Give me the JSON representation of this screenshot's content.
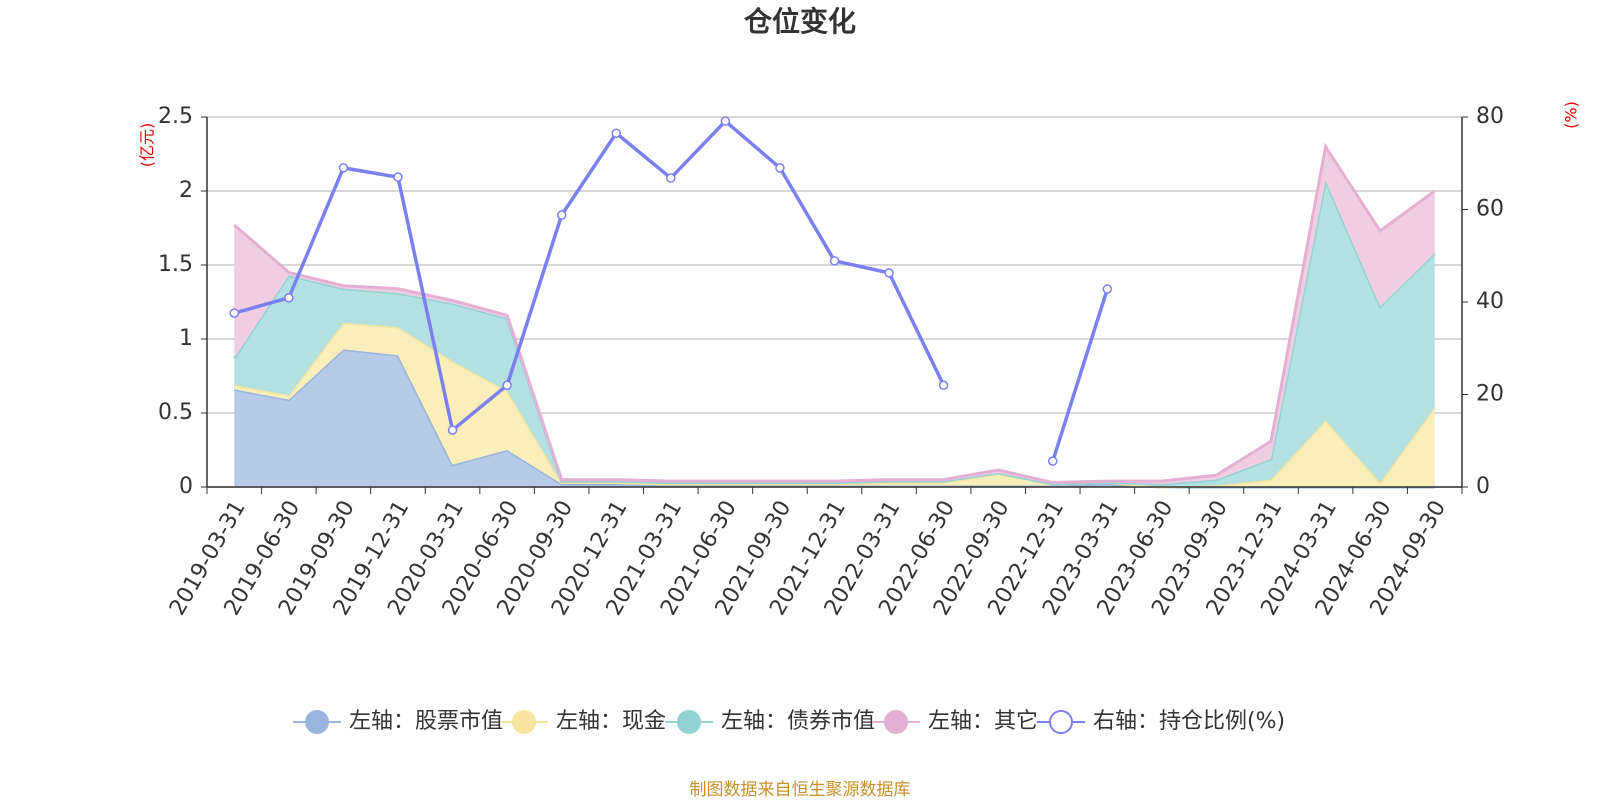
{
  "chart_data": {
    "type": "stacked-area-line",
    "title": "仓位变化",
    "y_label": "(亿元)",
    "y2_label": "(%)",
    "source": "制图数据来自恒生聚源数据库",
    "categories": [
      "2019-03-31",
      "2019-06-30",
      "2019-09-30",
      "2019-12-31",
      "2020-03-31",
      "2020-06-30",
      "2020-09-30",
      "2020-12-31",
      "2021-03-31",
      "2021-06-30",
      "2021-09-30",
      "2021-12-31",
      "2022-03-31",
      "2022-06-30",
      "2022-09-30",
      "2022-12-31",
      "2023-03-31",
      "2023-06-30",
      "2023-09-30",
      "2023-12-31",
      "2024-03-31",
      "2024-06-30",
      "2024-09-30"
    ],
    "ylim": [
      0,
      2.5
    ],
    "yticks": [
      0,
      0.5,
      1,
      1.5,
      2,
      2.5
    ],
    "y2lim": [
      0,
      80
    ],
    "y2ticks": [
      0,
      20,
      40,
      60,
      80
    ],
    "grid": true,
    "series": [
      {
        "name": "左轴：股票市值",
        "color": "#9ab4de",
        "fill": "#b7cbe9",
        "values": [
          0.66,
          0.59,
          0.93,
          0.89,
          0.15,
          0.25,
          0.02,
          0.02,
          0.01,
          0.01,
          0.01,
          0.01,
          0.01,
          0.01,
          0.01,
          0.01,
          0.02,
          0,
          0,
          0,
          0,
          0,
          0
        ]
      },
      {
        "name": "左轴：现金",
        "color": "#f7e59f",
        "fill": "#faeebb",
        "values": [
          0.03,
          0.03,
          0.18,
          0.19,
          0.7,
          0.4,
          0.01,
          0.01,
          0.01,
          0.01,
          0.01,
          0.01,
          0.02,
          0.02,
          0.08,
          0.01,
          0.01,
          0,
          0.01,
          0.05,
          0.45,
          0.03,
          0.54
        ]
      },
      {
        "name": "左轴：债券市值",
        "color": "#92d2d2",
        "fill": "#b3e0e0",
        "values": [
          0.18,
          0.81,
          0.23,
          0.23,
          0.39,
          0.49,
          0.01,
          0.01,
          0.01,
          0.01,
          0.01,
          0.01,
          0.01,
          0.01,
          0.005,
          0,
          0,
          0.02,
          0.04,
          0.14,
          1.62,
          1.19,
          1.04
        ]
      },
      {
        "name": "左轴：其它",
        "color": "#e3b0d4",
        "fill": "#efcde3",
        "values": [
          0.9,
          0.02,
          0.02,
          0.03,
          0.02,
          0.02,
          0.01,
          0.01,
          0.01,
          0.01,
          0.01,
          0.01,
          0.01,
          0.01,
          0.02,
          0.01,
          0.01,
          0.02,
          0.03,
          0.12,
          0.23,
          0.51,
          0.42
        ]
      },
      {
        "name": "右轴：持仓比例(%)",
        "color": "#7b80f0",
        "axis": "y2",
        "values": [
          37.6,
          40.9,
          69,
          67,
          12.3,
          22,
          58.8,
          76.5,
          66.8,
          79.1,
          69,
          48.9,
          46.3,
          22,
          null,
          5.6,
          42.8,
          null,
          null,
          null,
          null,
          null,
          null
        ]
      }
    ]
  }
}
